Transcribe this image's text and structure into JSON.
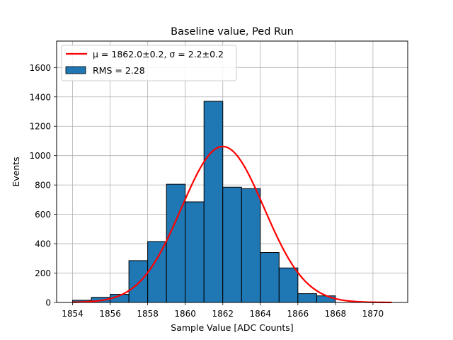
{
  "chart_data": {
    "type": "bar",
    "title": "Baseline value, Ped Run",
    "xlabel": "Sample Value [ADC Counts]",
    "ylabel": "Events",
    "xlim": [
      1853.15,
      1871.85
    ],
    "ylim": [
      0,
      1780
    ],
    "grid": true,
    "bin_width": 1,
    "bins": [
      {
        "x": 1854.5,
        "value": 15
      },
      {
        "x": 1855.5,
        "value": 35
      },
      {
        "x": 1856.5,
        "value": 55
      },
      {
        "x": 1857.5,
        "value": 285
      },
      {
        "x": 1858.5,
        "value": 415
      },
      {
        "x": 1859.5,
        "value": 805
      },
      {
        "x": 1860.5,
        "value": 685
      },
      {
        "x": 1861.5,
        "value": 1370
      },
      {
        "x": 1862.5,
        "value": 785
      },
      {
        "x": 1863.5,
        "value": 775
      },
      {
        "x": 1864.5,
        "value": 340
      },
      {
        "x": 1865.5,
        "value": 235
      },
      {
        "x": 1866.5,
        "value": 60
      },
      {
        "x": 1867.5,
        "value": 45
      }
    ],
    "bar_color": "#1f77b4",
    "fit": {
      "type": "gaussian",
      "amplitude": 1062,
      "mu": 1862.0,
      "sigma": 2.2,
      "x_range": [
        1854,
        1871
      ],
      "color": "#ff0000"
    },
    "xticks": [
      1854,
      1856,
      1858,
      1860,
      1862,
      1864,
      1866,
      1868,
      1870
    ],
    "yticks": [
      0,
      200,
      400,
      600,
      800,
      1000,
      1200,
      1400,
      1600
    ],
    "legend": {
      "placement": "upper-left",
      "entries": [
        {
          "kind": "line",
          "label": "μ = 1862.0±0.2, σ = 2.2±0.2",
          "color": "#ff0000"
        },
        {
          "kind": "patch",
          "label": "RMS = 2.28",
          "color": "#1f77b4"
        }
      ]
    }
  }
}
